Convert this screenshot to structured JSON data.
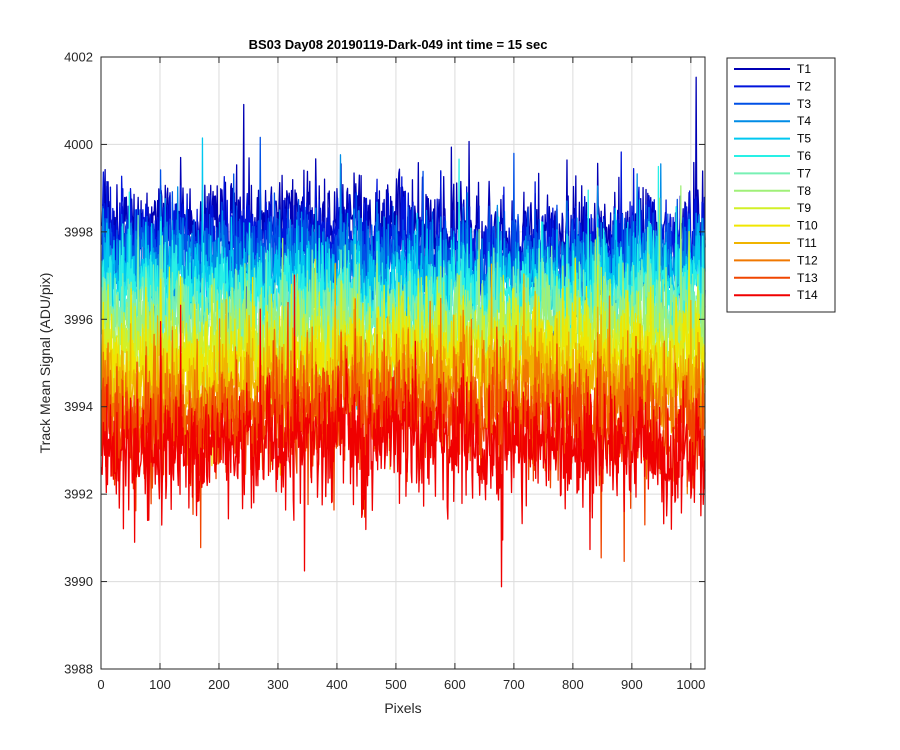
{
  "chart_data": {
    "type": "line",
    "title": "BS03 Day08 20190119-Dark-049 int time = 15 sec",
    "xlabel": "Pixels",
    "ylabel": "Track Mean Signal (ADU/pix)",
    "xlim": [
      0,
      1024
    ],
    "ylim": [
      3988,
      4002
    ],
    "x_ticks": [
      "0",
      "100",
      "200",
      "300",
      "400",
      "500",
      "600",
      "700",
      "800",
      "900",
      "1000"
    ],
    "y_ticks": [
      "3988",
      "3990",
      "3992",
      "3994",
      "3996",
      "3998",
      "4000",
      "4002"
    ],
    "grid": true,
    "legend_position": "outside-top-right",
    "points_per_series": 1024,
    "series": [
      {
        "name": "T1",
        "color": "#0000b4",
        "mean": 3998.1,
        "spread": 0.75,
        "wiggle": 0.15
      },
      {
        "name": "T2",
        "color": "#0014dc",
        "mean": 3997.8,
        "spread": 0.75,
        "wiggle": 0.15
      },
      {
        "name": "T3",
        "color": "#0050e6",
        "mean": 3997.5,
        "spread": 0.75,
        "wiggle": 0.15
      },
      {
        "name": "T4",
        "color": "#008ce6",
        "mean": 3997.2,
        "spread": 0.75,
        "wiggle": 0.15
      },
      {
        "name": "T5",
        "color": "#00c8f0",
        "mean": 3996.9,
        "spread": 0.75,
        "wiggle": 0.15
      },
      {
        "name": "T6",
        "color": "#28f0e6",
        "mean": 3996.6,
        "spread": 0.75,
        "wiggle": 0.15
      },
      {
        "name": "T7",
        "color": "#78f0b4",
        "mean": 3996.2,
        "spread": 0.75,
        "wiggle": 0.15
      },
      {
        "name": "T8",
        "color": "#a0f078",
        "mean": 3995.8,
        "spread": 0.8,
        "wiggle": 0.15
      },
      {
        "name": "T9",
        "color": "#d2f028",
        "mean": 3995.4,
        "spread": 0.8,
        "wiggle": 0.15
      },
      {
        "name": "T10",
        "color": "#f0e600",
        "mean": 3995.0,
        "spread": 0.85,
        "wiggle": 0.2
      },
      {
        "name": "T11",
        "color": "#f0b400",
        "mean": 3994.6,
        "spread": 0.85,
        "wiggle": 0.2
      },
      {
        "name": "T12",
        "color": "#f07800",
        "mean": 3994.1,
        "spread": 0.9,
        "wiggle": 0.2
      },
      {
        "name": "T13",
        "color": "#f04600",
        "mean": 3993.6,
        "spread": 0.95,
        "wiggle": 0.2
      },
      {
        "name": "T14",
        "color": "#f00000",
        "mean": 3993.1,
        "spread": 1.0,
        "wiggle": 0.2
      }
    ]
  }
}
